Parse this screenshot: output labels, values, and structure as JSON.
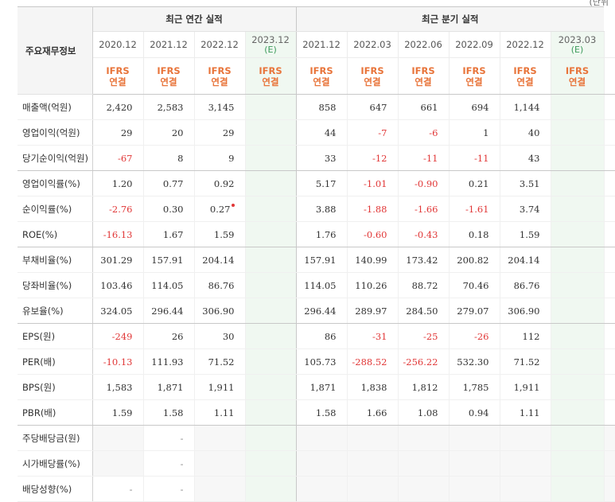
{
  "corner_text": "(단위",
  "header": {
    "label": "주요재무정보",
    "annual_title": "최근 연간 실적",
    "quarter_title": "최근 분기 실적",
    "periods": [
      {
        "label": "2020.12",
        "estimate": ""
      },
      {
        "label": "2021.12",
        "estimate": ""
      },
      {
        "label": "2022.12",
        "estimate": ""
      },
      {
        "label": "2023.12",
        "estimate": "(E)"
      },
      {
        "label": "2021.12",
        "estimate": ""
      },
      {
        "label": "2022.03",
        "estimate": ""
      },
      {
        "label": "2022.06",
        "estimate": ""
      },
      {
        "label": "2022.09",
        "estimate": ""
      },
      {
        "label": "2022.12",
        "estimate": ""
      },
      {
        "label": "2023.03",
        "estimate": "(E)"
      }
    ],
    "ifrs_top": "IFRS",
    "ifrs_bottom": "연결"
  },
  "rows": [
    {
      "label": "매출액(억원)",
      "values": [
        "2,420",
        "2,583",
        "3,145",
        "",
        "858",
        "647",
        "661",
        "694",
        "1,144",
        ""
      ]
    },
    {
      "label": "영업이익(억원)",
      "values": [
        "29",
        "20",
        "29",
        "",
        "44",
        "-7",
        "-6",
        "1",
        "40",
        ""
      ]
    },
    {
      "label": "당기순이익(억원)",
      "values": [
        "-67",
        "8",
        "9",
        "",
        "33",
        "-12",
        "-11",
        "-11",
        "43",
        ""
      ]
    },
    {
      "label": "영업이익률(%)",
      "values": [
        "1.20",
        "0.77",
        "0.92",
        "",
        "5.17",
        "-1.01",
        "-0.90",
        "0.21",
        "3.51",
        ""
      ]
    },
    {
      "label": "순이익률(%)",
      "values": [
        "-2.76",
        "0.30",
        "0.27",
        "",
        "3.88",
        "-1.88",
        "-1.66",
        "-1.61",
        "3.74",
        ""
      ]
    },
    {
      "label": "ROE(%)",
      "values": [
        "-16.13",
        "1.67",
        "1.59",
        "",
        "1.76",
        "-0.60",
        "-0.43",
        "0.18",
        "1.59",
        ""
      ]
    },
    {
      "label": "부채비율(%)",
      "values": [
        "301.29",
        "157.91",
        "204.14",
        "",
        "157.91",
        "140.99",
        "173.42",
        "200.82",
        "204.14",
        ""
      ]
    },
    {
      "label": "당좌비율(%)",
      "values": [
        "103.46",
        "114.05",
        "86.76",
        "",
        "114.05",
        "110.26",
        "88.72",
        "70.46",
        "86.76",
        ""
      ]
    },
    {
      "label": "유보율(%)",
      "values": [
        "324.05",
        "296.44",
        "306.90",
        "",
        "296.44",
        "289.97",
        "284.50",
        "279.07",
        "306.90",
        ""
      ]
    },
    {
      "label": "EPS(원)",
      "values": [
        "-249",
        "26",
        "30",
        "",
        "86",
        "-31",
        "-25",
        "-26",
        "112",
        ""
      ]
    },
    {
      "label": "PER(배)",
      "values": [
        "-10.13",
        "111.93",
        "71.52",
        "",
        "105.73",
        "-288.52",
        "-256.22",
        "532.30",
        "71.52",
        ""
      ]
    },
    {
      "label": "BPS(원)",
      "values": [
        "1,583",
        "1,871",
        "1,911",
        "",
        "1,871",
        "1,838",
        "1,812",
        "1,785",
        "1,911",
        ""
      ]
    },
    {
      "label": "PBR(배)",
      "values": [
        "1.59",
        "1.58",
        "1.11",
        "",
        "1.58",
        "1.66",
        "1.08",
        "0.94",
        "1.11",
        ""
      ]
    },
    {
      "label": "주당배당금(원)",
      "values": [
        "",
        "-",
        "",
        "",
        "",
        "",
        "",
        "",
        "",
        ""
      ]
    },
    {
      "label": "시가배당률(%)",
      "values": [
        "",
        "-",
        "",
        "",
        "",
        "",
        "",
        "",
        "",
        ""
      ]
    },
    {
      "label": "배당성향(%)",
      "values": [
        "-",
        "-",
        "",
        "",
        "",
        "",
        "",
        "",
        "",
        ""
      ]
    }
  ],
  "colors": {
    "ifrs": "#e8743a",
    "negative": "#e13737",
    "estimate_bg": "#f0f8f1",
    "header_bg": "#f5f5f5"
  }
}
